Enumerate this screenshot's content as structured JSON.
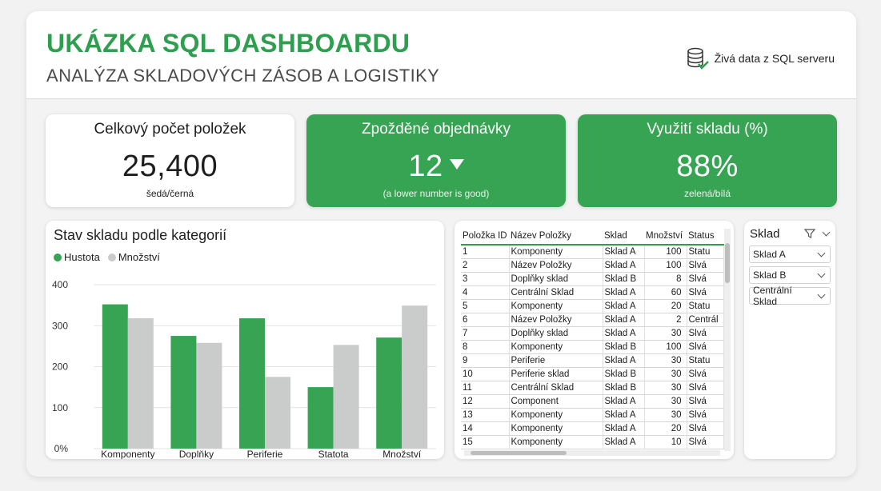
{
  "header": {
    "title": "UKÁZKA SQL DASHBOARDU",
    "subtitle": "ANALÝZA SKLADOVÝCH ZÁSOB A LOGISTIKY",
    "live_label": "Živá data z SQL serveru",
    "live_icon": "database-icon"
  },
  "kpis": [
    {
      "title": "Celkový počet položek",
      "value": "25,400",
      "note": "šedá/černá"
    },
    {
      "title": "Zpožděné objednávky",
      "value": "12",
      "note": "(a lower number is good)",
      "trend_icon": "arrow-down-icon"
    },
    {
      "title": "Využití skladu (%)",
      "value": "88%",
      "note": "zelená/bílá"
    }
  ],
  "colors": {
    "accent": "#2e9e4f",
    "kpi_green": "#36a453",
    "series_green": "#36a453",
    "series_gray": "#c9cccb"
  },
  "chart_data": {
    "type": "bar",
    "title": "Stav skladu podle kategorií",
    "categories": [
      "Komponenty",
      "Doplňky",
      "Periferie",
      "Statota",
      "Množství"
    ],
    "series": [
      {
        "name": "Hustota",
        "color": "#36a453",
        "values": [
          352,
          275,
          318,
          150,
          271
        ]
      },
      {
        "name": "Množství",
        "color": "#c9cccb",
        "values": [
          318,
          258,
          175,
          253,
          349
        ]
      }
    ],
    "ylim": [
      0,
      400
    ],
    "yticks": [
      "0%",
      "100",
      "200",
      "300",
      "400"
    ],
    "grid": true,
    "legend": "top-left"
  },
  "table": {
    "columns": [
      "Položka ID",
      "Název Položky",
      "Sklad",
      "Množství",
      "Status"
    ],
    "rows": [
      [
        "1",
        "Komponenty",
        "Sklad A",
        "100",
        "Statu"
      ],
      [
        "2",
        "Název Položky",
        "Sklad A",
        "100",
        "Slvá"
      ],
      [
        "3",
        "Doplňky sklad",
        "Sklad B",
        "8",
        "Slvá"
      ],
      [
        "4",
        "Centrální Sklad",
        "Sklad A",
        "60",
        "Slvá"
      ],
      [
        "5",
        "Komponenty",
        "Sklad A",
        "20",
        "Statu"
      ],
      [
        "6",
        "Název Položky",
        "Sklad A",
        "2",
        "Centrál"
      ],
      [
        "7",
        "Doplňky sklad",
        "Sklad A",
        "30",
        "Slvá"
      ],
      [
        "8",
        "Komponenty",
        "Sklad B",
        "100",
        "Slvá"
      ],
      [
        "9",
        "Periferie",
        "Sklad A",
        "30",
        "Statu"
      ],
      [
        "10",
        "Periferie sklad",
        "Sklad B",
        "30",
        "Slvá"
      ],
      [
        "11",
        "Centrální Sklad",
        "Sklad B",
        "30",
        "Slvá"
      ],
      [
        "12",
        "Component",
        "Sklad A",
        "30",
        "Slvá"
      ],
      [
        "13",
        "Komponenty",
        "Sklad A",
        "30",
        "Slvá"
      ],
      [
        "14",
        "Komponenty",
        "Sklad A",
        "20",
        "Slvá"
      ],
      [
        "15",
        "Komponenty",
        "Sklad A",
        "10",
        "Slvá"
      ]
    ]
  },
  "slicer": {
    "title": "Sklad",
    "options": [
      "Sklad A",
      "Sklad B",
      "Centrální Sklad"
    ]
  }
}
